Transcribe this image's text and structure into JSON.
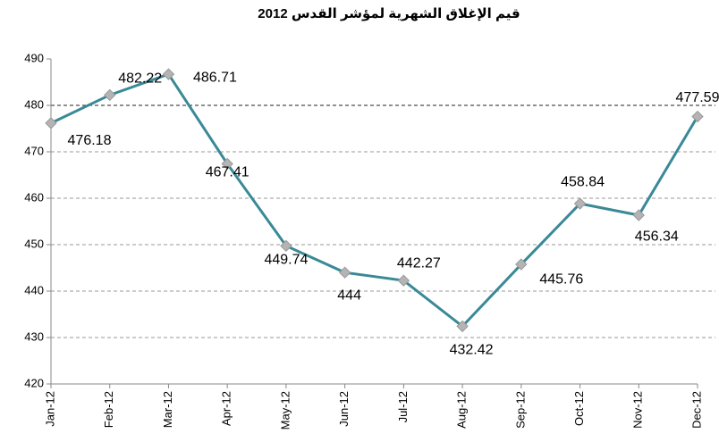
{
  "chart_data": {
    "type": "line",
    "title": "قيم الإغلاق الشهرية لمؤشر القدس 2012",
    "categories": [
      "Jan-12",
      "Feb-12",
      "Mar-12",
      "Apr-12",
      "May-12",
      "Jun-12",
      "Jul-12",
      "Aug-12",
      "Sep-12",
      "Oct-12",
      "Nov-12",
      "Dec-12"
    ],
    "series": [
      {
        "name": "Al-Quds",
        "color": "#3a8997",
        "marker_color": "#b4b4b4",
        "values": [
          476.18,
          482.22,
          486.71,
          467.41,
          449.74,
          444,
          442.27,
          432.42,
          445.76,
          458.84,
          456.34,
          477.59
        ]
      }
    ],
    "ylim": [
      420,
      490
    ],
    "yticks": [
      420,
      430,
      440,
      450,
      460,
      470,
      480,
      490
    ],
    "grid": true
  }
}
